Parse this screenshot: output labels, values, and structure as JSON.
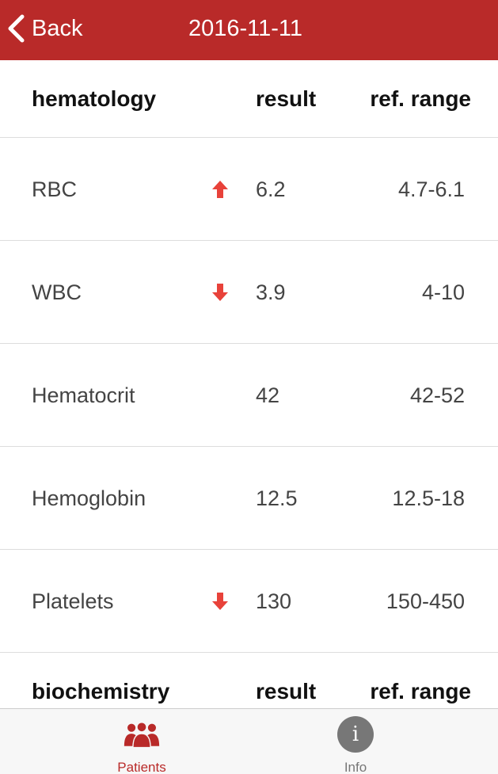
{
  "header": {
    "back_label": "Back",
    "title": "2016-11-11",
    "background_color": "#b92a29"
  },
  "sections": [
    {
      "name": "hematology",
      "result_header": "result",
      "range_header": "ref. range",
      "rows": [
        {
          "name": "RBC",
          "flag": "up",
          "result": "6.2",
          "range": "4.7-6.1"
        },
        {
          "name": "WBC",
          "flag": "down",
          "result": "3.9",
          "range": "4-10"
        },
        {
          "name": "Hematocrit",
          "flag": null,
          "result": "42",
          "range": "42-52"
        },
        {
          "name": "Hemoglobin",
          "flag": null,
          "result": "12.5",
          "range": "12.5-18"
        },
        {
          "name": "Platelets",
          "flag": "down",
          "result": "130",
          "range": "150-450"
        }
      ]
    },
    {
      "name": "biochemistry",
      "result_header": "result",
      "range_header": "ref. range",
      "rows": []
    }
  ],
  "flag_color": "#e8423a",
  "tabbar": {
    "tabs": [
      {
        "label": "Patients",
        "icon": "people-icon",
        "active": true
      },
      {
        "label": "Info",
        "icon": "info-icon",
        "active": false
      }
    ],
    "active_color": "#b92a29",
    "inactive_color": "#777777"
  }
}
